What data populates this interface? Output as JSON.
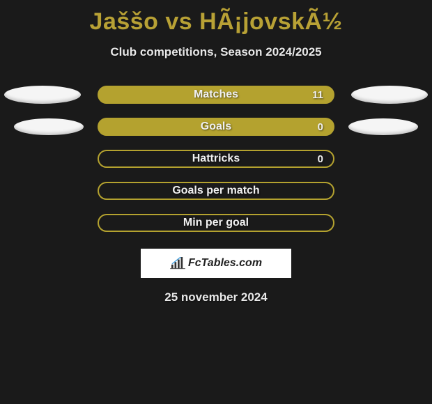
{
  "title": "Jaššo vs HÃ¡jovskÃ½",
  "subtitle": "Club competitions, Season 2024/2025",
  "date": "25 november 2024",
  "logo_text": "FcTables.com",
  "colors": {
    "background": "#1a1a1a",
    "accent": "#b4a22f",
    "title": "#b8a135",
    "text": "#e8e8e8",
    "ellipse": "#f5f5f5",
    "logo_bg": "#ffffff"
  },
  "rows": [
    {
      "label": "Matches",
      "value": "11",
      "filled": true,
      "show_value": true,
      "left_ellipse": "wide",
      "right_ellipse": "wide"
    },
    {
      "label": "Goals",
      "value": "0",
      "filled": true,
      "show_value": true,
      "left_ellipse": "narrow",
      "right_ellipse": "narrow"
    },
    {
      "label": "Hattricks",
      "value": "0",
      "filled": false,
      "show_value": true,
      "left_ellipse": null,
      "right_ellipse": null
    },
    {
      "label": "Goals per match",
      "value": "",
      "filled": false,
      "show_value": false,
      "left_ellipse": null,
      "right_ellipse": null
    },
    {
      "label": "Min per goal",
      "value": "",
      "filled": false,
      "show_value": false,
      "left_ellipse": null,
      "right_ellipse": null
    }
  ]
}
